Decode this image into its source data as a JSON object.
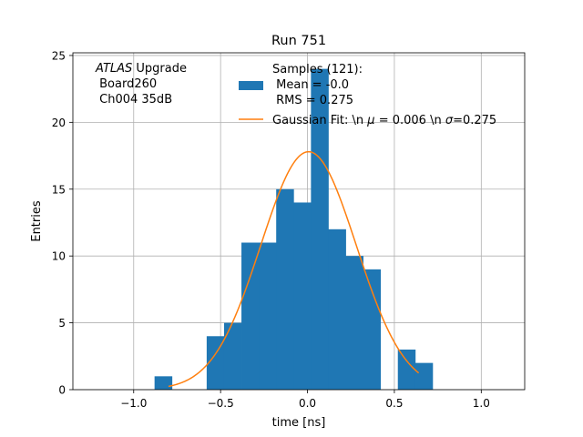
{
  "chart_data": {
    "type": "bar",
    "title": "Run 751",
    "xlabel": "time [ns]",
    "ylabel": "Entries",
    "xlim": [
      -1.35,
      1.25
    ],
    "ylim": [
      0,
      25.2
    ],
    "grid": true,
    "xticks": [
      -1.0,
      -0.5,
      0.0,
      0.5,
      1.0
    ],
    "xtick_labels": [
      "−1.0",
      "−0.5",
      "0.0",
      "0.5",
      "1.0"
    ],
    "yticks": [
      0,
      5,
      10,
      15,
      20,
      25
    ],
    "ytick_labels": [
      "0",
      "5",
      "10",
      "15",
      "20",
      "25"
    ],
    "histogram": {
      "name": "Samples (121):\n Mean = -0.0\n RMS = 0.275",
      "color": "#1f77b4",
      "bins": [
        {
          "x0": -0.88,
          "x1": -0.78,
          "count": 1
        },
        {
          "x0": -0.58,
          "x1": -0.48,
          "count": 4
        },
        {
          "x0": -0.48,
          "x1": -0.38,
          "count": 5
        },
        {
          "x0": -0.38,
          "x1": -0.28,
          "count": 11
        },
        {
          "x0": -0.28,
          "x1": -0.18,
          "count": 11
        },
        {
          "x0": -0.18,
          "x1": -0.08,
          "count": 15
        },
        {
          "x0": -0.08,
          "x1": 0.02,
          "count": 14
        },
        {
          "x0": 0.02,
          "x1": 0.12,
          "count": 24
        },
        {
          "x0": 0.12,
          "x1": 0.22,
          "count": 12
        },
        {
          "x0": 0.22,
          "x1": 0.32,
          "count": 10
        },
        {
          "x0": 0.32,
          "x1": 0.42,
          "count": 9
        },
        {
          "x0": 0.52,
          "x1": 0.62,
          "count": 3
        },
        {
          "x0": 0.62,
          "x1": 0.72,
          "count": 2
        }
      ]
    },
    "fit": {
      "name": "Gaussian Fit: \\n μ = 0.006 \\n σ=0.275",
      "color": "#ff7f0e",
      "mu": 0.006,
      "sigma": 0.275,
      "amplitude": 17.8,
      "x_range": [
        -0.8,
        0.64
      ]
    },
    "annotation": {
      "italic": "ATLAS",
      "rest": " Upgrade",
      "line2": " Board260",
      "line3": " Ch004 35dB"
    },
    "legend": {
      "placement": "top-center",
      "hist_lines": [
        "Samples (121):",
        " Mean = -0.0",
        " RMS = 0.275"
      ],
      "fit_label_prefix": "Gaussian Fit: \\n ",
      "fit_label_mu": "μ",
      "fit_label_mid": " = 0.006 \\n ",
      "fit_label_sigma": "σ",
      "fit_label_suffix": "=0.275"
    }
  }
}
